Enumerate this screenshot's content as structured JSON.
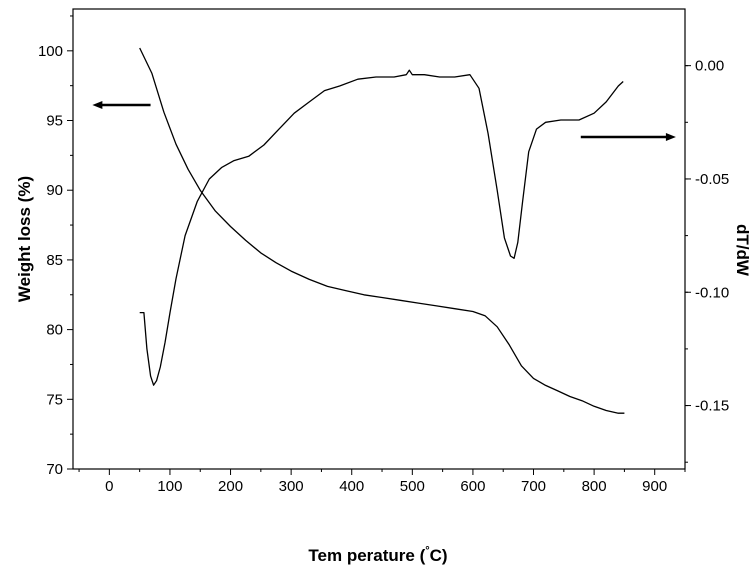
{
  "chart_data": {
    "type": "line",
    "xlabel": "Tem perature (",
    "xlabel_unit": "°C",
    "xlabel_close": ")",
    "ylabel_left": "Weight loss (%)",
    "ylabel_right": "dT/dW",
    "xlim": [
      -60,
      950
    ],
    "ylim_left": [
      70,
      103
    ],
    "ylim_right": [
      -0.178,
      0.025
    ],
    "x_ticks": [
      0,
      100,
      200,
      300,
      400,
      500,
      600,
      700,
      800,
      900
    ],
    "x_tick_labels": [
      "0",
      "100",
      "200",
      "300",
      "400",
      "500",
      "600",
      "700",
      "800",
      "900"
    ],
    "y_left_ticks": [
      70,
      75,
      80,
      85,
      90,
      95,
      100
    ],
    "y_left_tick_labels": [
      "70",
      "75",
      "80",
      "85",
      "90",
      "95",
      "100"
    ],
    "y_right_ticks": [
      0.0,
      -0.05,
      -0.1,
      -0.15
    ],
    "y_right_tick_labels": [
      "0.00",
      "-0.05",
      "-0.10",
      "-0.15"
    ],
    "grid": false,
    "series": [
      {
        "axis": "left",
        "x": [
          50,
          70,
          90,
          110,
          130,
          150,
          175,
          200,
          225,
          250,
          275,
          300,
          330,
          360,
          390,
          420,
          450,
          480,
          510,
          540,
          570,
          600,
          620,
          640,
          660,
          680,
          700,
          720,
          740,
          760,
          780,
          800,
          820,
          840,
          850
        ],
        "y": [
          100.2,
          98.4,
          95.6,
          93.3,
          91.5,
          90.0,
          88.5,
          87.4,
          86.4,
          85.5,
          84.8,
          84.2,
          83.6,
          83.1,
          82.8,
          82.5,
          82.3,
          82.1,
          81.9,
          81.7,
          81.5,
          81.3,
          81.0,
          80.2,
          78.9,
          77.4,
          76.5,
          76.0,
          75.6,
          75.2,
          74.9,
          74.5,
          74.2,
          74.0,
          74.0
        ]
      },
      {
        "axis": "right",
        "x": [
          50,
          57,
          62,
          68,
          73,
          78,
          84,
          92,
          100,
          110,
          125,
          145,
          165,
          185,
          205,
          230,
          255,
          280,
          305,
          330,
          355,
          380,
          410,
          440,
          470,
          490,
          495,
          500,
          505,
          520,
          545,
          570,
          595,
          610,
          625,
          640,
          652,
          662,
          668,
          674,
          682,
          692,
          705,
          720,
          745,
          775,
          800,
          820,
          840,
          848
        ],
        "y": [
          -0.109,
          -0.109,
          -0.125,
          -0.137,
          -0.141,
          -0.139,
          -0.133,
          -0.122,
          -0.109,
          -0.094,
          -0.075,
          -0.06,
          -0.05,
          -0.045,
          -0.042,
          -0.04,
          -0.035,
          -0.028,
          -0.021,
          -0.016,
          -0.011,
          -0.009,
          -0.006,
          -0.005,
          -0.005,
          -0.004,
          -0.002,
          -0.004,
          -0.004,
          -0.004,
          -0.005,
          -0.005,
          -0.004,
          -0.01,
          -0.03,
          -0.055,
          -0.076,
          -0.084,
          -0.085,
          -0.078,
          -0.06,
          -0.038,
          -0.028,
          -0.025,
          -0.024,
          -0.024,
          -0.021,
          -0.016,
          -0.009,
          -0.007
        ]
      }
    ],
    "annotations": [
      {
        "type": "arrow",
        "direction": "left",
        "points_to_axis": "left"
      },
      {
        "type": "arrow",
        "direction": "right",
        "points_to_axis": "right"
      }
    ]
  }
}
